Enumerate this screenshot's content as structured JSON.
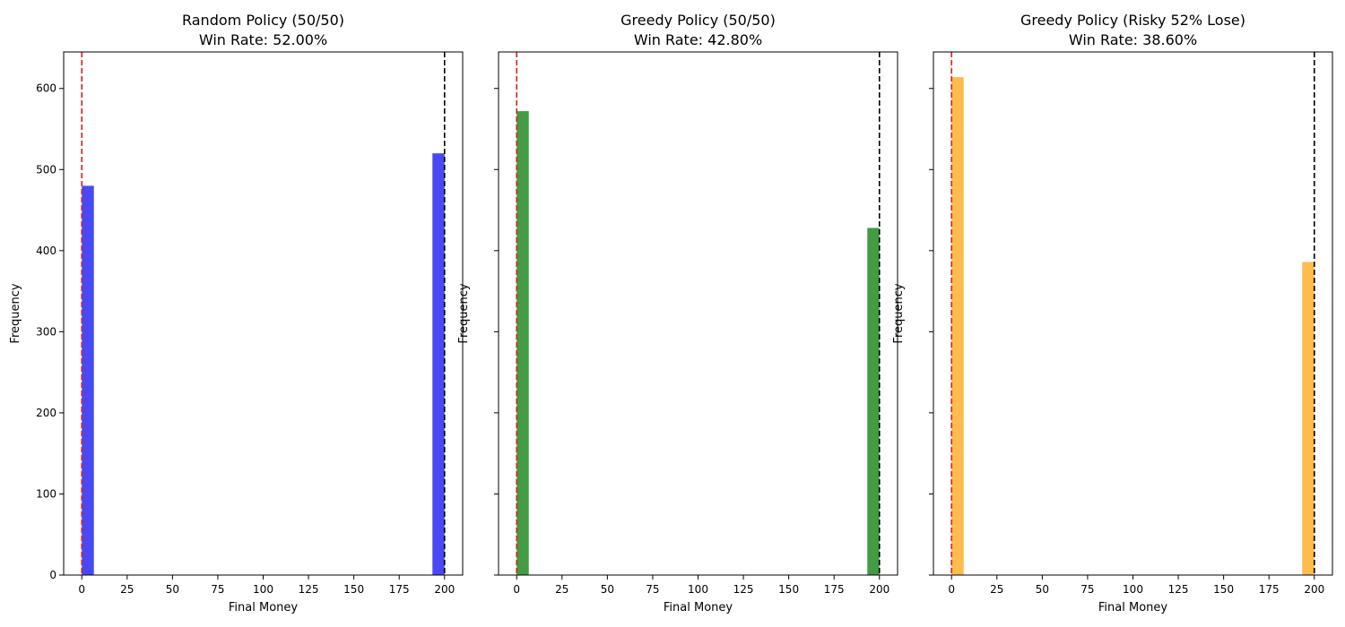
{
  "chart_data": [
    {
      "type": "bar",
      "title": "Random Policy (50/50)",
      "subtitle": "Win Rate: 52.00%",
      "xlabel": "Final Money",
      "ylabel": "Frequency",
      "xlim": [
        -10,
        210
      ],
      "ylim": [
        0,
        645
      ],
      "xticks": [
        0,
        25,
        50,
        75,
        100,
        125,
        150,
        175,
        200
      ],
      "yticks": [
        0,
        100,
        200,
        300,
        400,
        500,
        600
      ],
      "show_ytick_labels": true,
      "grid": false,
      "color": "#4949f3",
      "bars": [
        {
          "x0": 0,
          "x1": 6.67,
          "value": 480
        },
        {
          "x0": 193.33,
          "x1": 200,
          "value": 520
        }
      ],
      "vlines": [
        {
          "x": 0,
          "color": "#dd1c1c"
        },
        {
          "x": 200,
          "color": "#000000"
        }
      ]
    },
    {
      "type": "bar",
      "title": "Greedy Policy (50/50)",
      "subtitle": "Win Rate: 42.80%",
      "xlabel": "Final Money",
      "ylabel": "Frequency",
      "xlim": [
        -10,
        210
      ],
      "ylim": [
        0,
        645
      ],
      "xticks": [
        0,
        25,
        50,
        75,
        100,
        125,
        150,
        175,
        200
      ],
      "yticks": [
        0,
        100,
        200,
        300,
        400,
        500,
        600
      ],
      "show_ytick_labels": false,
      "grid": false,
      "color": "#439b43",
      "bars": [
        {
          "x0": 0,
          "x1": 6.67,
          "value": 572
        },
        {
          "x0": 193.33,
          "x1": 200,
          "value": 428
        }
      ],
      "vlines": [
        {
          "x": 0,
          "color": "#dd1c1c"
        },
        {
          "x": 200,
          "color": "#000000"
        }
      ]
    },
    {
      "type": "bar",
      "title": "Greedy Policy (Risky 52% Lose)",
      "subtitle": "Win Rate: 38.60%",
      "xlabel": "Final Money",
      "ylabel": "Frequency",
      "xlim": [
        -10,
        210
      ],
      "ylim": [
        0,
        645
      ],
      "xticks": [
        0,
        25,
        50,
        75,
        100,
        125,
        150,
        175,
        200
      ],
      "yticks": [
        0,
        100,
        200,
        300,
        400,
        500,
        600
      ],
      "show_ytick_labels": false,
      "grid": false,
      "color": "#fdbc4c",
      "bars": [
        {
          "x0": 0,
          "x1": 6.67,
          "value": 614
        },
        {
          "x0": 193.33,
          "x1": 200,
          "value": 386
        }
      ],
      "vlines": [
        {
          "x": 0,
          "color": "#dd1c1c"
        },
        {
          "x": 200,
          "color": "#000000"
        }
      ]
    }
  ]
}
